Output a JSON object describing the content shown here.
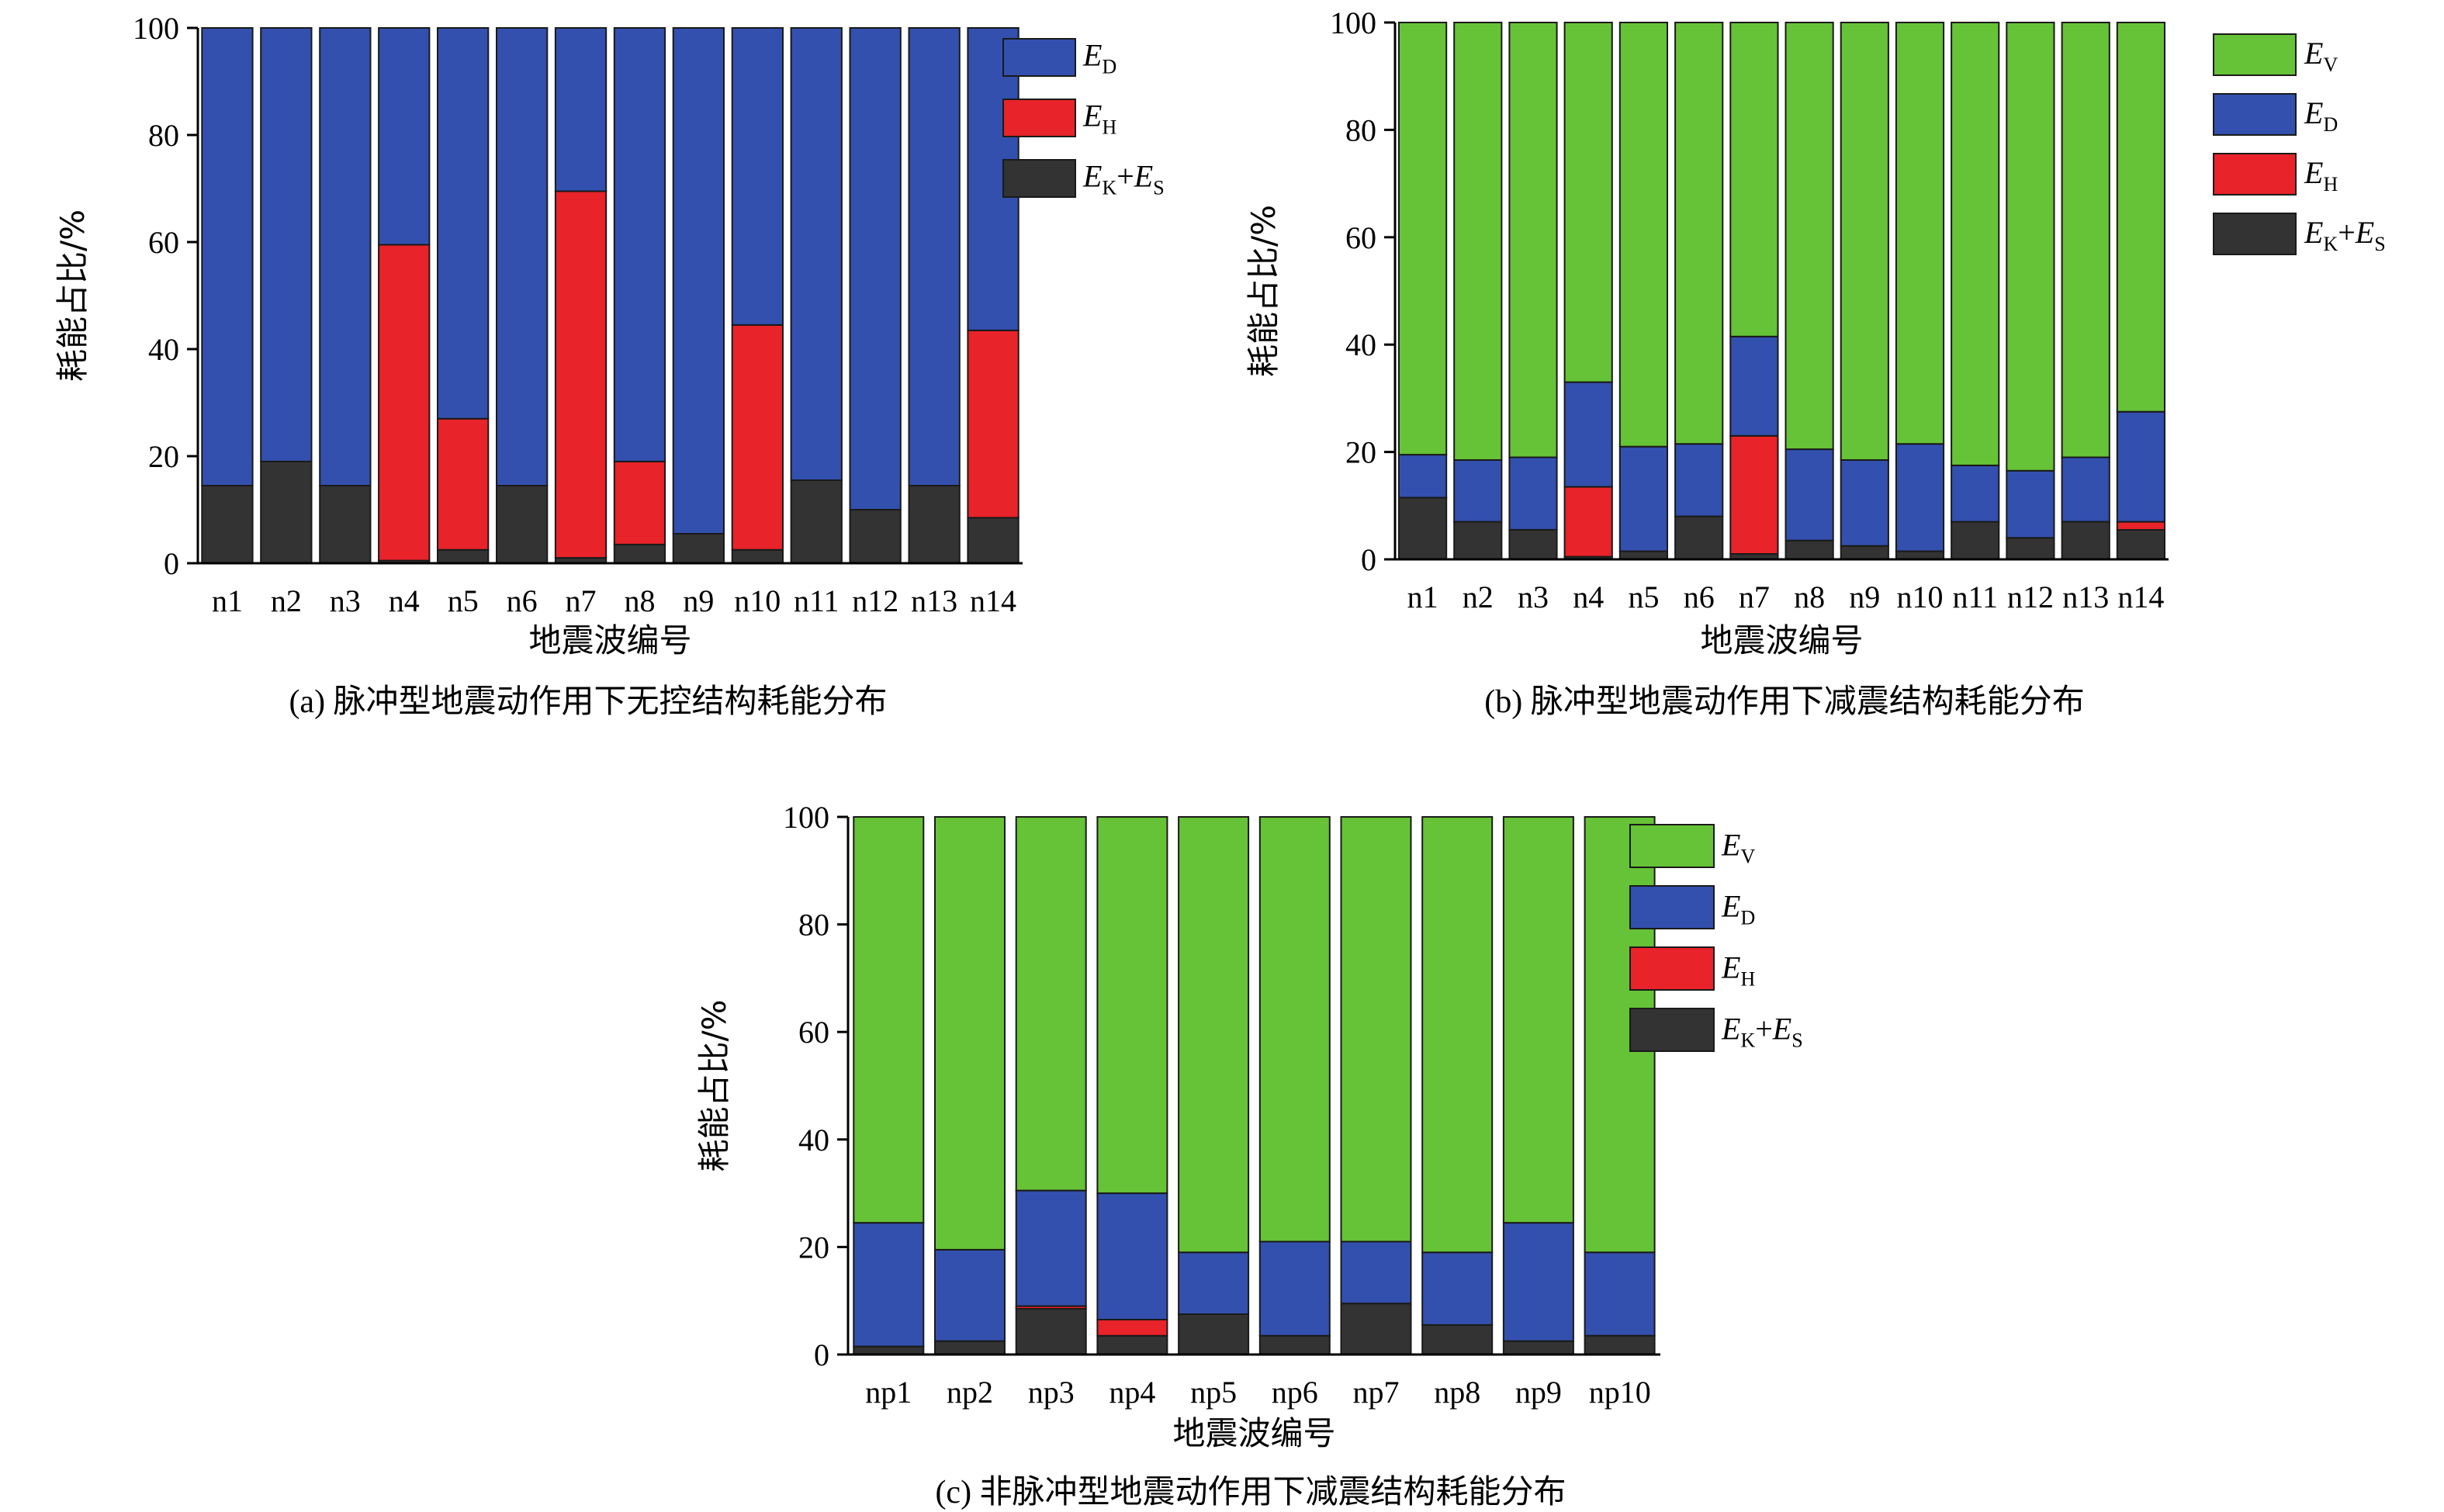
{
  "colors": {
    "E_V": "#66c236",
    "E_D": "#3350ae",
    "E_H": "#e8232a",
    "E_KS": "#333333",
    "outline": "#1a1a1a"
  },
  "legend_labels": {
    "E_V": {
      "main": "E",
      "sub": "V"
    },
    "E_D": {
      "main": "E",
      "sub": "D"
    },
    "E_H": {
      "main": "E",
      "sub": "H"
    },
    "E_KS": {
      "main": "E",
      "sub": "K",
      "plus": "+",
      "main2": "E",
      "sub2": "S"
    }
  },
  "chart_data": [
    {
      "type": "bar",
      "stacked": true,
      "caption": "(a) 脉冲型地震动作用下无控结构耗能分布",
      "xlabel": "地震波编号",
      "ylabel": "耗能占比/%",
      "ylim": [
        0,
        100
      ],
      "yticks": [
        0,
        20,
        40,
        60,
        80,
        100
      ],
      "legend_position": "top-right",
      "legend_order": [
        "E_D",
        "E_H",
        "E_KS"
      ],
      "categories": [
        "n1",
        "n2",
        "n3",
        "n4",
        "n5",
        "n6",
        "n7",
        "n8",
        "n9",
        "n10",
        "n11",
        "n12",
        "n13",
        "n14"
      ],
      "series": [
        {
          "key": "E_KS",
          "values": [
            14.5,
            19,
            14.5,
            0.5,
            2.5,
            14.5,
            1,
            3.5,
            5.5,
            2.5,
            15.5,
            10,
            14.5,
            8.5
          ]
        },
        {
          "key": "E_H",
          "values": [
            0,
            0,
            0,
            59,
            24.5,
            0,
            68.5,
            15.5,
            0,
            42,
            0,
            0,
            0,
            35
          ]
        },
        {
          "key": "E_D",
          "values": [
            85.5,
            81,
            85.5,
            40.5,
            73,
            85.5,
            30.5,
            81,
            94.5,
            55.5,
            84.5,
            90,
            85.5,
            56.5
          ]
        }
      ]
    },
    {
      "type": "bar",
      "stacked": true,
      "caption": "(b) 脉冲型地震动作用下减震结构耗能分布",
      "xlabel": "地震波编号",
      "ylabel": "耗能占比/%",
      "ylim": [
        0,
        100
      ],
      "yticks": [
        0,
        20,
        40,
        60,
        80,
        100
      ],
      "legend_position": "top-right",
      "legend_order": [
        "E_V",
        "E_D",
        "E_H",
        "E_KS"
      ],
      "categories": [
        "n1",
        "n2",
        "n3",
        "n4",
        "n5",
        "n6",
        "n7",
        "n8",
        "n9",
        "n10",
        "n11",
        "n12",
        "n13",
        "n14"
      ],
      "series": [
        {
          "key": "E_KS",
          "values": [
            11.5,
            7,
            5.5,
            0.5,
            1.5,
            8,
            1,
            3.5,
            2.5,
            1.5,
            7,
            4,
            7,
            5.5
          ]
        },
        {
          "key": "E_H",
          "values": [
            0,
            0,
            0,
            13,
            0,
            0,
            22,
            0,
            0,
            0,
            0,
            0,
            0,
            1.5
          ]
        },
        {
          "key": "E_D",
          "values": [
            8,
            11.5,
            13.5,
            19.5,
            19.5,
            13.5,
            18.5,
            17,
            16,
            20,
            10.5,
            12.5,
            12,
            20.5
          ]
        },
        {
          "key": "E_V",
          "values": [
            80.5,
            81.5,
            81,
            67,
            79,
            78.5,
            58.5,
            79.5,
            81.5,
            78.5,
            82.5,
            83.5,
            81,
            72.5
          ]
        }
      ]
    },
    {
      "type": "bar",
      "stacked": true,
      "caption": "(c) 非脉冲型地震动作用下减震结构耗能分布",
      "xlabel": "地震波编号",
      "ylabel": "耗能占比/%",
      "ylim": [
        0,
        100
      ],
      "yticks": [
        0,
        20,
        40,
        60,
        80,
        100
      ],
      "legend_position": "top-right",
      "legend_order": [
        "E_V",
        "E_D",
        "E_H",
        "E_KS"
      ],
      "categories": [
        "np1",
        "np2",
        "np3",
        "np4",
        "np5",
        "np6",
        "np7",
        "np8",
        "np9",
        "np10"
      ],
      "series": [
        {
          "key": "E_KS",
          "values": [
            1.5,
            2.5,
            8.5,
            3.5,
            7.5,
            3.5,
            9.5,
            5.5,
            2.5,
            3.5
          ]
        },
        {
          "key": "E_H",
          "values": [
            0,
            0,
            0.5,
            3,
            0,
            0,
            0,
            0,
            0,
            0
          ]
        },
        {
          "key": "E_D",
          "values": [
            23,
            17,
            21.5,
            23.5,
            11.5,
            17.5,
            11.5,
            13.5,
            22,
            15.5
          ]
        },
        {
          "key": "E_V",
          "values": [
            75.5,
            80.5,
            69.5,
            70,
            81,
            79,
            79,
            81,
            75.5,
            81
          ]
        }
      ]
    }
  ]
}
